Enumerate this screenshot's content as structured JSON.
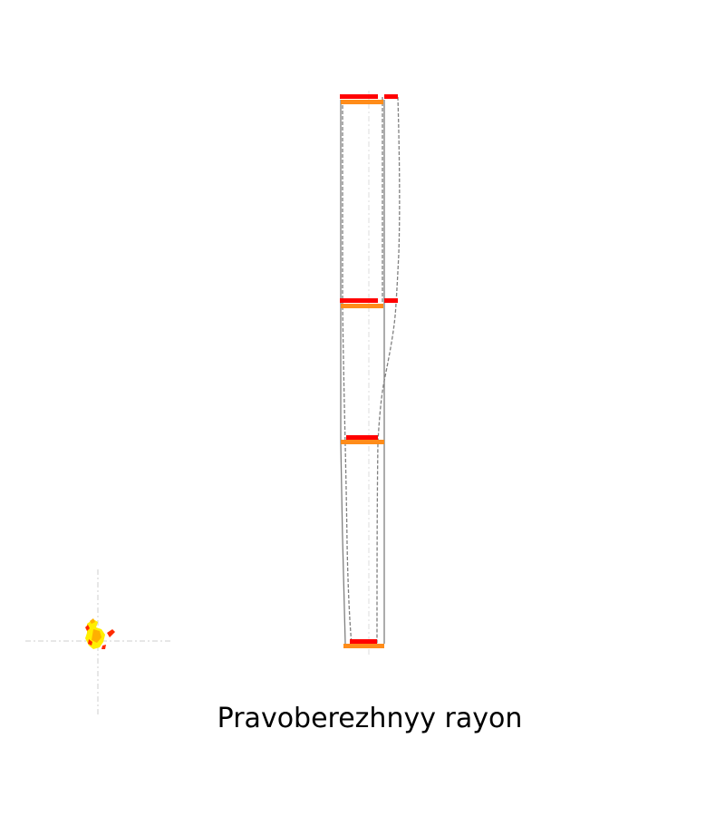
{
  "title": "Pravoberezhnyy rayon",
  "colors": {
    "background": "#ffffff",
    "axis": "#cfcfcf",
    "outline": "#808080",
    "bar_high": "#ff0000",
    "bar_base": "#ff8c1a",
    "glyph_yellow": "#ffee00",
    "glyph_orange": "#ffb000",
    "glyph_red": "#ff2a00"
  }
}
